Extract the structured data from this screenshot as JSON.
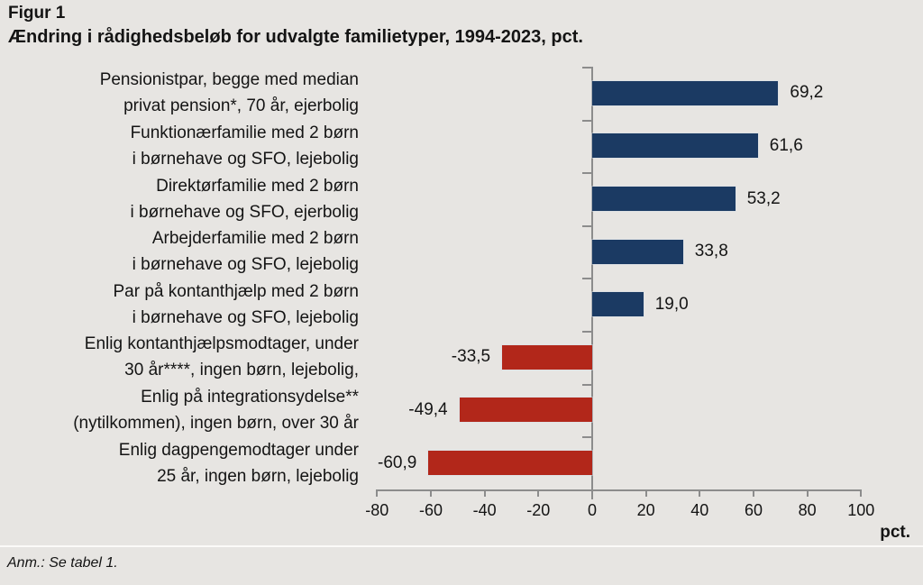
{
  "figure_label": "Figur 1",
  "title": "Ændring i rådighedsbeløb for udvalgte familietyper, 1994-2023, pct.",
  "footnote": "Anm.: Se tabel 1.",
  "chart_data": {
    "type": "bar",
    "orientation": "horizontal",
    "title": "Ændring i rådighedsbeløb for udvalgte familietyper, 1994-2023, pct.",
    "categories": [
      [
        "Pensionistpar, begge med median",
        "privat pension*, 70 år, ejerbolig"
      ],
      [
        "Funktionærfamilie med 2 børn",
        "i børnehave og SFO, lejebolig"
      ],
      [
        "Direktørfamilie med 2 børn",
        "i børnehave og SFO, ejerbolig"
      ],
      [
        "Arbejderfamilie med 2 børn",
        "i børnehave og SFO, lejebolig"
      ],
      [
        "Par på kontanthjælp med 2 børn",
        "i børnehave og SFO, lejebolig"
      ],
      [
        "Enlig kontanthjælpsmodtager, under",
        "30 år****, ingen børn, lejebolig,"
      ],
      [
        "Enlig på integrationsydelse**",
        "(nytilkommen), ingen børn, over 30 år"
      ],
      [
        "Enlig dagpengemodtager under",
        "25 år, ingen børn, lejebolig"
      ]
    ],
    "values": [
      69.2,
      61.6,
      53.2,
      33.8,
      19.0,
      -33.5,
      -49.4,
      -60.9
    ],
    "value_labels": [
      "69,2",
      "61,6",
      "53,2",
      "33,8",
      "19,0",
      "-33,5",
      "-49,4",
      "-60,9"
    ],
    "xlabel": "pct.",
    "xlim": [
      -80,
      100
    ],
    "xticks": [
      -80,
      -60,
      -40,
      -20,
      0,
      20,
      40,
      60,
      80,
      100
    ],
    "xtick_labels": [
      "-80",
      "-60",
      "-40",
      "-20",
      "0",
      "20",
      "40",
      "60",
      "80",
      "100"
    ],
    "grid": false,
    "legend": false,
    "positive_color": "#1b3a63",
    "negative_color": "#b2271a",
    "axis_color": "#8c8c8c",
    "background_color": "#e7e5e2",
    "text_color": "#141414"
  }
}
